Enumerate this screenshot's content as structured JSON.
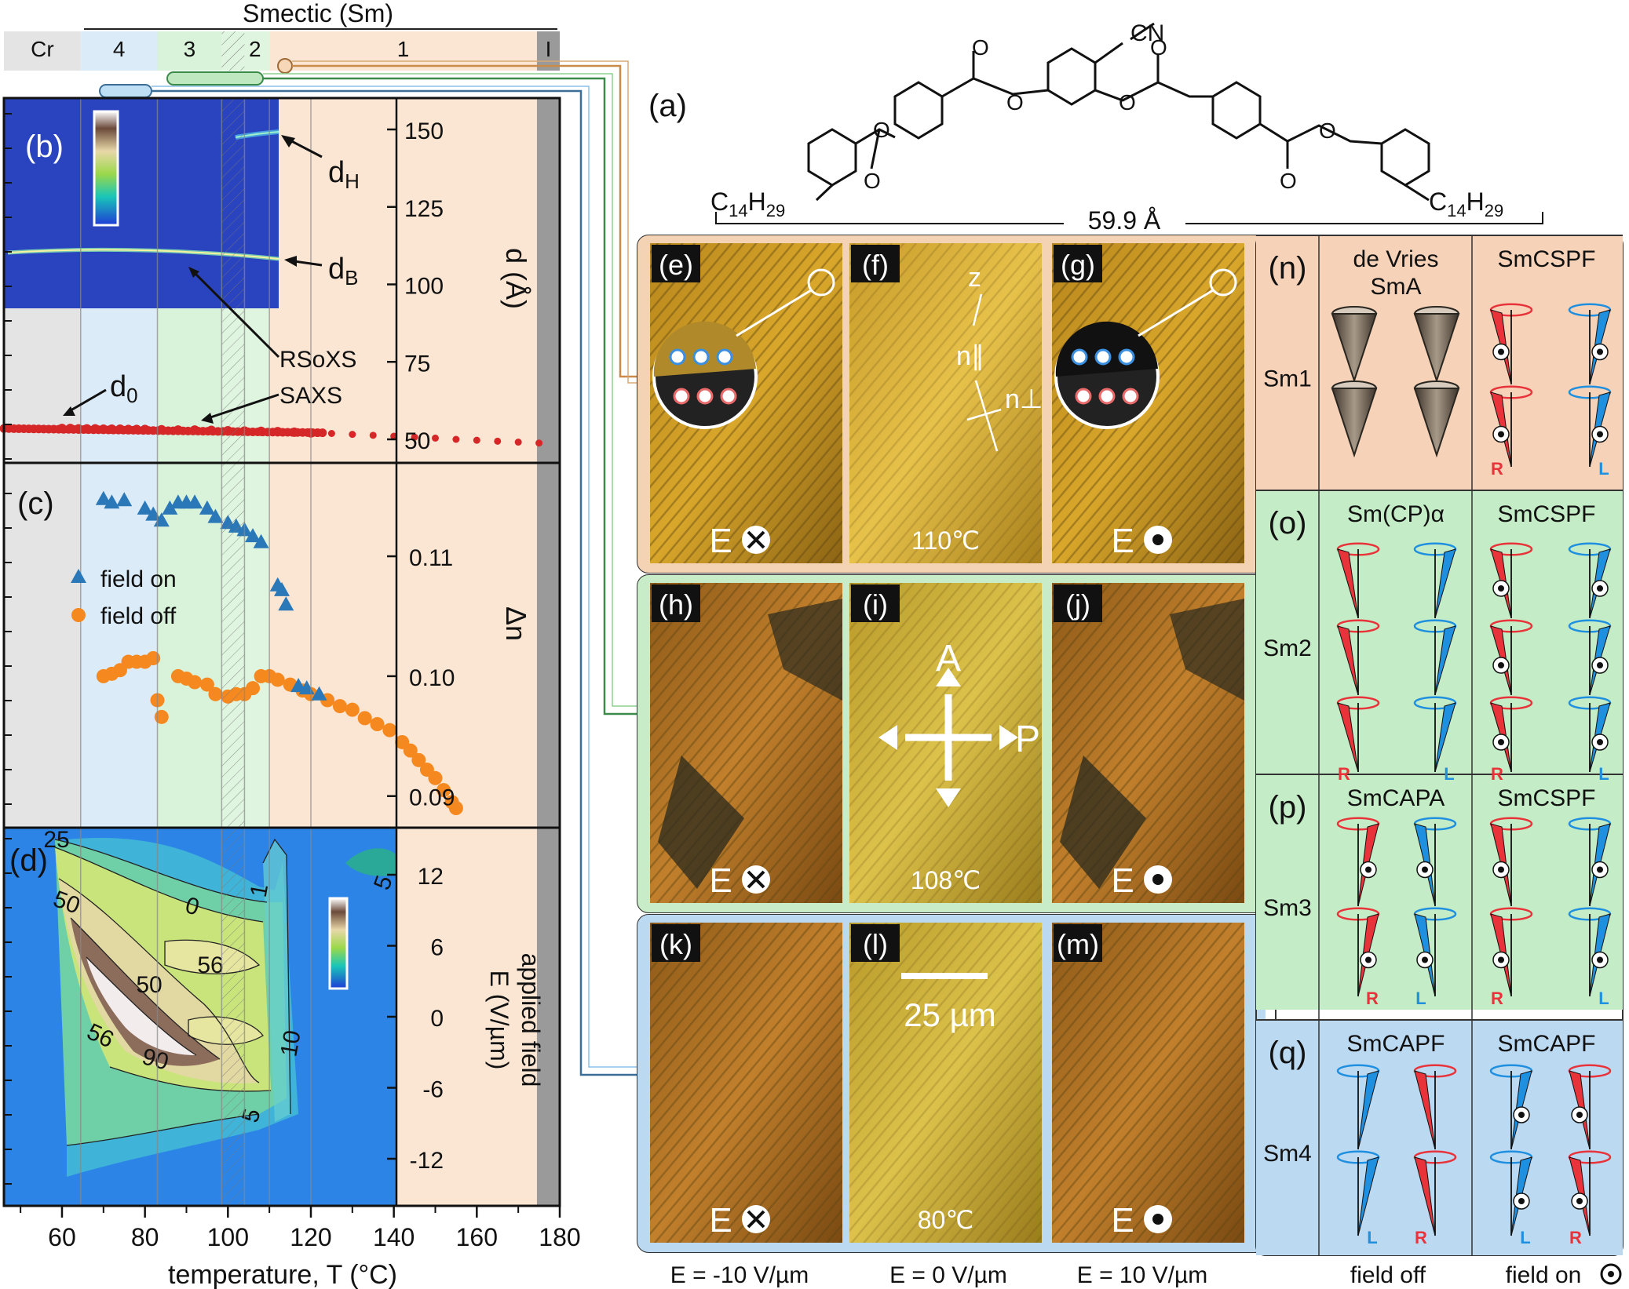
{
  "phase_bar": {
    "title": "Smectic (Sm)",
    "labels": [
      "Cr",
      "4",
      "3",
      "2",
      "1",
      "I"
    ]
  },
  "panel_a": {
    "label": "(a)",
    "left_chain": "C14H29",
    "right_chain": "C14H29",
    "cn": "CN",
    "length": "59.9 Å"
  },
  "chart_data": [
    {
      "panel": "(b)",
      "type": "scatter",
      "ylabel": "d (Å)",
      "ylim": [
        45,
        160
      ],
      "yticks": [
        50,
        75,
        100,
        125,
        150
      ],
      "annotations": [
        "dH",
        "dB",
        "RSoXS",
        "SAXS",
        "d0"
      ],
      "series": [
        {
          "name": "SAXS",
          "x": [
            60,
            62,
            64,
            66,
            68,
            70,
            72,
            74,
            76,
            78,
            80,
            84,
            88,
            92,
            96,
            100,
            104,
            108,
            112,
            116,
            120,
            125,
            130,
            135,
            140,
            145,
            150,
            155,
            160,
            165,
            170,
            175
          ],
          "y": [
            53.5,
            53.5,
            53.4,
            53.4,
            53.4,
            53.3,
            53.3,
            53.3,
            53.2,
            53.2,
            53.2,
            53.1,
            53.0,
            53.0,
            52.9,
            52.8,
            52.7,
            52.6,
            52.5,
            52.3,
            52.1,
            51.9,
            51.6,
            51.3,
            51.0,
            50.7,
            50.4,
            50.0,
            49.7,
            49.4,
            49.1,
            48.8
          ]
        }
      ]
    },
    {
      "panel": "(c)",
      "type": "scatter",
      "ylabel": "Δn",
      "yticks": [
        0.09,
        0.1,
        0.11
      ],
      "series": [
        {
          "name": "field on",
          "x": [
            70,
            72,
            75,
            80,
            82,
            84,
            86,
            88,
            90,
            92,
            95,
            97,
            100,
            102,
            104,
            106,
            108,
            112,
            113,
            114,
            117,
            119,
            122
          ],
          "y": [
            0.1148,
            0.1145,
            0.1147,
            0.114,
            0.1135,
            0.113,
            0.114,
            0.1145,
            0.1145,
            0.1145,
            0.114,
            0.1133,
            0.1128,
            0.1125,
            0.1122,
            0.1117,
            0.1112,
            0.1076,
            0.1072,
            0.106,
            0.0992,
            0.099,
            0.0985
          ]
        },
        {
          "name": "field off",
          "x": [
            70,
            72,
            74,
            76,
            78,
            80,
            82,
            83,
            84,
            88,
            90,
            92,
            95,
            97,
            100,
            102,
            104,
            106,
            108,
            110,
            112,
            115,
            118,
            120,
            124,
            127,
            130,
            133,
            136,
            139,
            142,
            144,
            146,
            148,
            150,
            152,
            154,
            155
          ],
          "y": [
            0.1,
            0.1002,
            0.1005,
            0.1012,
            0.1012,
            0.1012,
            0.1015,
            0.098,
            0.0966,
            0.1,
            0.0998,
            0.0995,
            0.0993,
            0.0985,
            0.0983,
            0.0985,
            0.0985,
            0.099,
            0.1,
            0.1,
            0.0997,
            0.0993,
            0.0988,
            0.0985,
            0.098,
            0.0975,
            0.0972,
            0.0965,
            0.096,
            0.0955,
            0.0945,
            0.0938,
            0.093,
            0.0922,
            0.0915,
            0.0905,
            0.0895,
            0.089
          ]
        }
      ]
    },
    {
      "panel": "(d)",
      "type": "heatmap",
      "ylabel_line1": "applied field",
      "ylabel_line2": "E (V/µm)",
      "yticks": [
        12,
        6,
        0,
        -6,
        -12
      ],
      "contour_labels": [
        "25",
        "50",
        "0",
        "1",
        "56",
        "50",
        "56",
        "90",
        "10",
        "5",
        "5"
      ]
    }
  ],
  "x_axis": {
    "label": "temperature, T (°C)",
    "ticks": [
      60,
      80,
      100,
      120,
      140,
      160,
      180
    ]
  },
  "micrographs": {
    "rows": [
      {
        "labels": [
          "(e)",
          "(f)",
          "(g)"
        ],
        "temp": "110℃",
        "extra": [
          "z",
          "n∥",
          "n⊥"
        ]
      },
      {
        "labels": [
          "(h)",
          "(i)",
          "(j)"
        ],
        "temp": "108℃",
        "extra": [
          "A",
          "P"
        ]
      },
      {
        "labels": [
          "(k)",
          "(l)",
          "(m)"
        ],
        "temp": "80℃",
        "extra": [
          "25 µm"
        ]
      }
    ],
    "field_symbol": "E",
    "bottom_labels": [
      "E = -10 V/µm",
      "E = 0 V/µm",
      "E = 10 V/µm"
    ]
  },
  "models": {
    "rows": [
      {
        "label": "(n)",
        "phase": "Sm1",
        "left_title_1": "de Vries",
        "left_title_2": "SmA",
        "right_title": "SmCSPF"
      },
      {
        "label": "(o)",
        "phase": "Sm2",
        "left_title": "Sm(CP)α",
        "right_title": "SmCSPF"
      },
      {
        "label": "(p)",
        "phase": "Sm3",
        "left_title": "SmCAPA",
        "right_title": "SmCSPF"
      },
      {
        "label": "(q)",
        "phase": "Sm4",
        "left_title": "SmCAPF",
        "right_title": "SmCAPF"
      }
    ],
    "hand_R": "R",
    "hand_L": "L",
    "bottom_left": "field off",
    "bottom_right": "field on"
  },
  "colors": {
    "phase1": "#fbe6d4",
    "phase2": "#dff5df",
    "phase3": "#d9f2da",
    "phase4": "#dcebf8",
    "cr": "#e4e4e4",
    "iso": "#9a9a9a",
    "saxs": "#d62728",
    "field_on": "#2a78b8",
    "field_off": "#f5891f",
    "red_cone": "#e8333a",
    "blue_cone": "#1f8fe0"
  }
}
